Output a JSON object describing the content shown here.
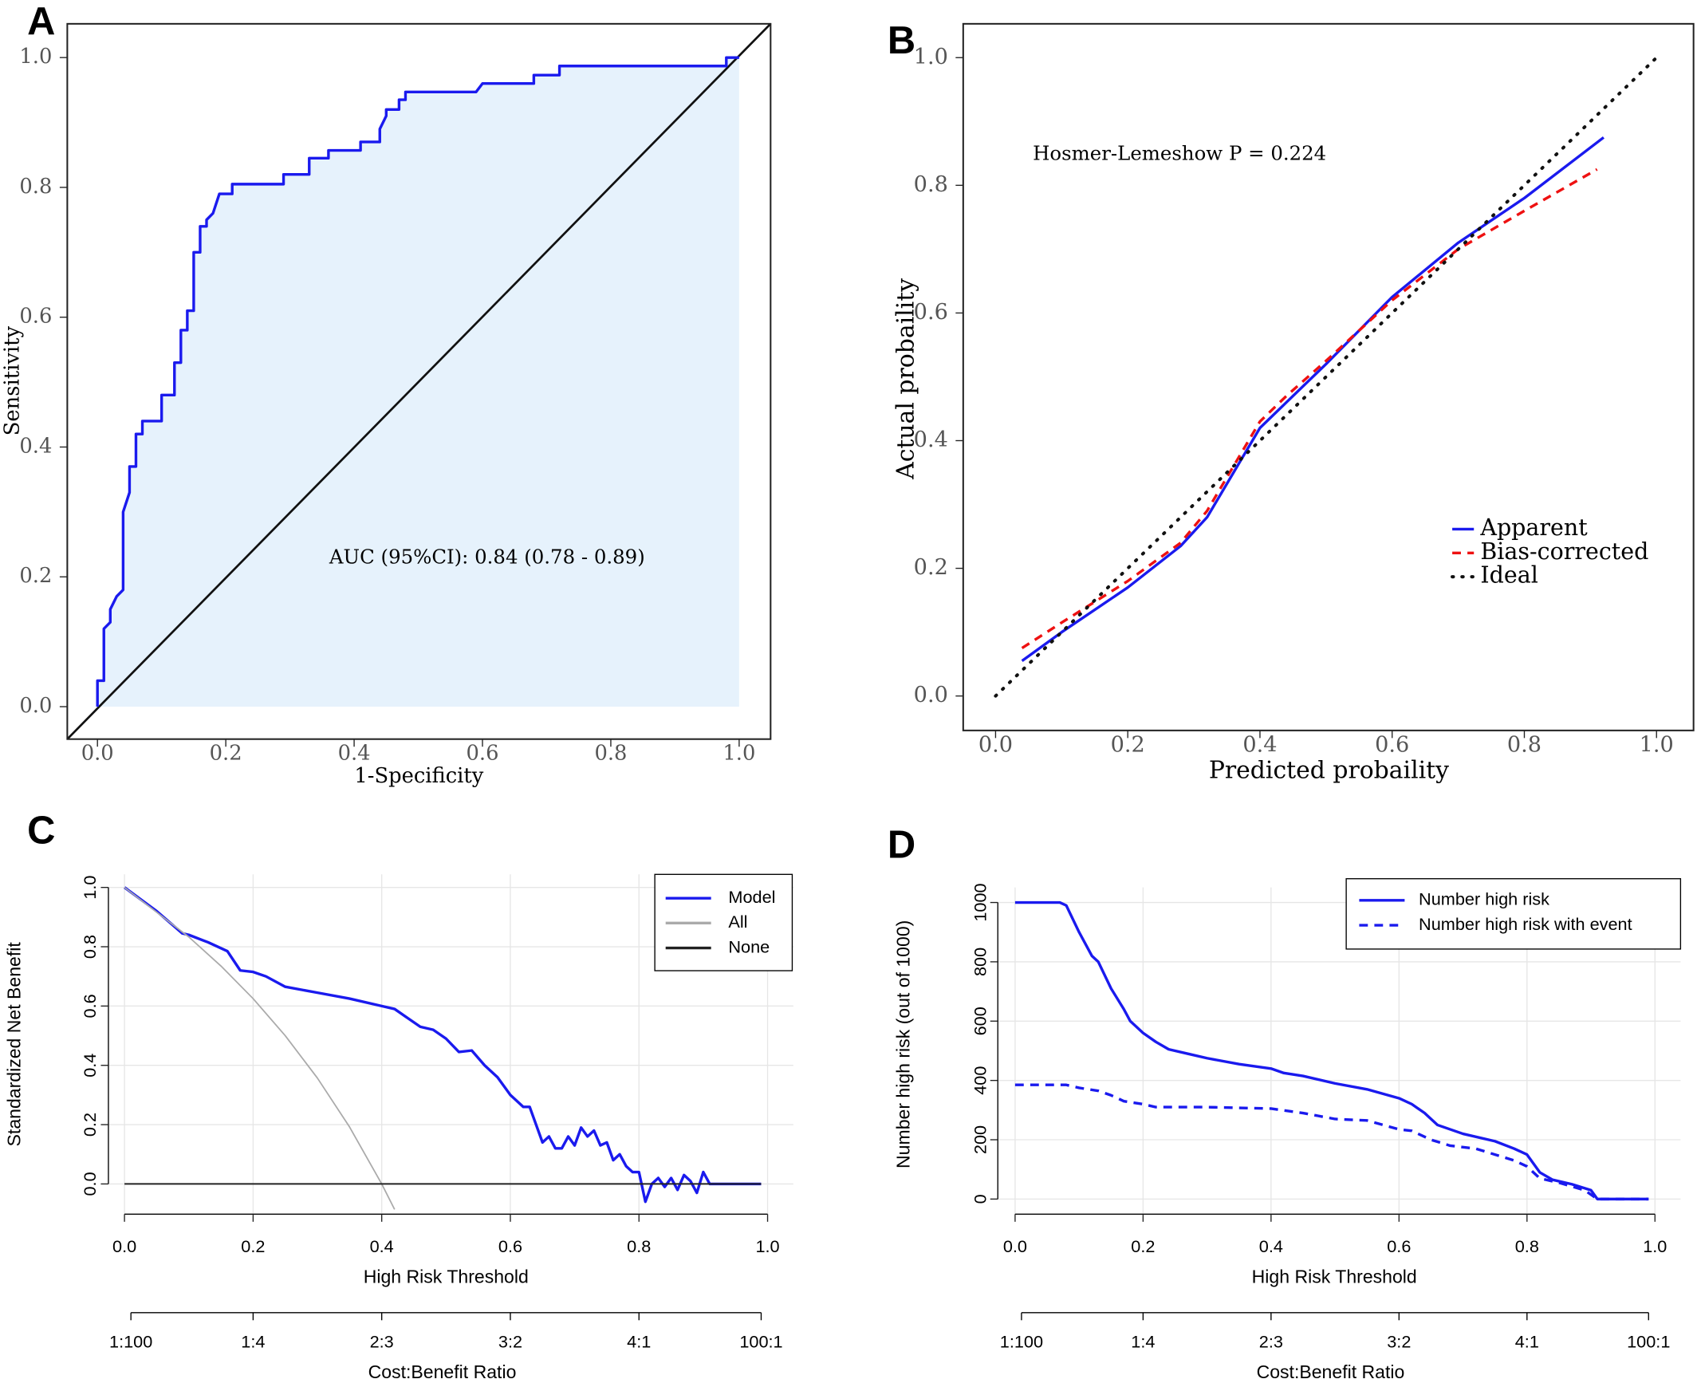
{
  "chart_data": [
    {
      "type": "line",
      "panel": "A",
      "xlabel": "1-Specificity",
      "ylabel": "Sensitivity",
      "annotation": "AUC (95%CI): 0.84 (0.78 - 0.89)",
      "xlim": [
        -0.047,
        1.049
      ],
      "ylim": [
        -0.05,
        1.052
      ],
      "grid": false,
      "xticks": [
        {
          "value": 0,
          "label": "0.0"
        },
        0.2,
        0.4,
        0.6,
        0.8,
        {
          "value": 1,
          "label": "1.0"
        }
      ],
      "yticks": [
        {
          "value": 0,
          "label": "0.0"
        },
        0.2,
        0.4,
        0.6,
        0.8,
        {
          "value": 1,
          "label": "1.0"
        }
      ],
      "series": [
        {
          "color": "#1a1aee",
          "fill": "#e6f2fc",
          "dash": "solid",
          "x": [
            0,
            0,
            0.01,
            0.01,
            0.02,
            0.02,
            0.03,
            0.04,
            0.04,
            0.05,
            0.05,
            0.06,
            0.06,
            0.07,
            0.07,
            0.1,
            0.1,
            0.12,
            0.12,
            0.13,
            0.13,
            0.14,
            0.14,
            0.15,
            0.15,
            0.16,
            0.16,
            0.17,
            0.17,
            0.18,
            0.19,
            0.21,
            0.21,
            0.29,
            0.29,
            0.33,
            0.33,
            0.36,
            0.36,
            0.41,
            0.41,
            0.44,
            0.44,
            0.45,
            0.45,
            0.47,
            0.47,
            0.48,
            0.48,
            0.59,
            0.6,
            0.68,
            0.68,
            0.72,
            0.72,
            0.98,
            0.98,
            1
          ],
          "values": [
            0,
            0.04,
            0.04,
            0.12,
            0.13,
            0.15,
            0.17,
            0.18,
            0.3,
            0.33,
            0.37,
            0.37,
            0.42,
            0.42,
            0.44,
            0.44,
            0.48,
            0.48,
            0.53,
            0.53,
            0.58,
            0.58,
            0.61,
            0.61,
            0.7,
            0.7,
            0.74,
            0.74,
            0.75,
            0.76,
            0.79,
            0.79,
            0.805,
            0.805,
            0.82,
            0.82,
            0.845,
            0.845,
            0.857,
            0.857,
            0.87,
            0.87,
            0.89,
            0.91,
            0.92,
            0.92,
            0.935,
            0.935,
            0.947,
            0.947,
            0.96,
            0.96,
            0.973,
            0.973,
            0.987,
            0.987,
            1,
            1
          ]
        }
      ]
    },
    {
      "type": "line",
      "panel": "B",
      "xlabel": "Predicted probaility",
      "ylabel": "Actual probaility",
      "annotation": "Hosmer-Lemeshow  P  =  0.224",
      "xlim": [
        -0.049,
        1.056
      ],
      "ylim": [
        -0.054,
        1.053
      ],
      "grid": false,
      "legend": "bottom-right",
      "xticks": [
        {
          "value": 0,
          "label": "0.0"
        },
        0.2,
        0.4,
        0.6,
        0.8,
        {
          "value": 1,
          "label": "1.0"
        }
      ],
      "yticks": [
        {
          "value": 0,
          "label": "0.0"
        },
        0.2,
        0.4,
        0.6,
        0.8,
        {
          "value": 1,
          "label": "1.0"
        }
      ],
      "series": [
        {
          "name": "Apparent",
          "color": "#1a1aee",
          "dash": "solid",
          "x": [
            0.04,
            0.1,
            0.2,
            0.28,
            0.32,
            0.36,
            0.4,
            0.44,
            0.5,
            0.6,
            0.7,
            0.8,
            0.92
          ],
          "values": [
            0.055,
            0.1,
            0.17,
            0.235,
            0.28,
            0.35,
            0.42,
            0.46,
            0.52,
            0.625,
            0.71,
            0.78,
            0.875
          ]
        },
        {
          "name": "Bias-corrected",
          "color": "#ee1111",
          "dash": "dashed",
          "x": [
            0.04,
            0.1,
            0.2,
            0.28,
            0.32,
            0.36,
            0.4,
            0.44,
            0.5,
            0.6,
            0.7,
            0.8,
            0.91
          ],
          "values": [
            0.075,
            0.115,
            0.18,
            0.24,
            0.29,
            0.36,
            0.43,
            0.47,
            0.525,
            0.62,
            0.7,
            0.76,
            0.825
          ]
        },
        {
          "name": "Ideal",
          "color": "#111111",
          "dash": "dotted",
          "x": [
            0,
            1
          ],
          "values": [
            0,
            1
          ]
        }
      ]
    },
    {
      "type": "line",
      "panel": "C",
      "xlabel": "High Risk Threshold",
      "ylabel": "Standardized Net Benefit",
      "x2label": "Cost:Benefit Ratio",
      "xlim": [
        -0.025,
        1.04
      ],
      "ylim": [
        -0.102,
        1.044
      ],
      "grid": true,
      "legend": "top-right",
      "xticks": [
        {
          "value": 0,
          "label": "0.0"
        },
        0.2,
        0.4,
        0.6,
        0.8,
        {
          "value": 1,
          "label": "1.0"
        }
      ],
      "yticks": [
        {
          "value": 0,
          "label": "0.0"
        },
        0.2,
        0.4,
        0.6,
        0.8,
        {
          "value": 1,
          "label": "1.0"
        }
      ],
      "x2ticks": [
        {
          "value": 0.01,
          "label": "1:100"
        },
        {
          "value": 0.2,
          "label": "1:4"
        },
        {
          "value": 0.4,
          "label": "2:3"
        },
        {
          "value": 0.6,
          "label": "3:2"
        },
        {
          "value": 0.8,
          "label": "4:1"
        },
        {
          "value": 0.99,
          "label": "100:1"
        }
      ],
      "series": [
        {
          "name": "Model",
          "color": "#1a1aee",
          "dash": "solid",
          "x": [
            0,
            0.05,
            0.09,
            0.1,
            0.13,
            0.16,
            0.18,
            0.2,
            0.22,
            0.25,
            0.3,
            0.35,
            0.4,
            0.42,
            0.44,
            0.46,
            0.48,
            0.5,
            0.52,
            0.54,
            0.56,
            0.58,
            0.6,
            0.62,
            0.63,
            0.64,
            0.65,
            0.66,
            0.67,
            0.68,
            0.69,
            0.7,
            0.71,
            0.72,
            0.73,
            0.74,
            0.75,
            0.76,
            0.77,
            0.78,
            0.79,
            0.8,
            0.81,
            0.82,
            0.83,
            0.84,
            0.85,
            0.86,
            0.87,
            0.88,
            0.89,
            0.9,
            0.91,
            0.99
          ],
          "values": [
            1,
            0.92,
            0.845,
            0.84,
            0.815,
            0.785,
            0.72,
            0.715,
            0.7,
            0.665,
            0.645,
            0.625,
            0.6,
            0.59,
            0.56,
            0.53,
            0.52,
            0.49,
            0.445,
            0.45,
            0.4,
            0.36,
            0.3,
            0.26,
            0.26,
            0.2,
            0.14,
            0.16,
            0.12,
            0.12,
            0.16,
            0.13,
            0.19,
            0.16,
            0.18,
            0.13,
            0.14,
            0.08,
            0.1,
            0.06,
            0.04,
            0.04,
            -0.06,
            0,
            0.02,
            -0.01,
            0.02,
            -0.02,
            0.03,
            0.01,
            -0.03,
            0.04,
            0,
            0
          ]
        },
        {
          "name": "All",
          "color": "#aaaaaa",
          "dash": "solid",
          "x": [
            0,
            0.1,
            0.15,
            0.2,
            0.25,
            0.3,
            0.35,
            0.4,
            0.42
          ],
          "values": [
            1,
            0.833,
            0.735,
            0.625,
            0.5,
            0.357,
            0.192,
            0,
            -0.086
          ]
        },
        {
          "name": "None",
          "color": "#222222",
          "dash": "solid",
          "x": [
            0,
            0.99
          ],
          "values": [
            0,
            0
          ]
        }
      ]
    },
    {
      "type": "line",
      "panel": "D",
      "xlabel": "High Risk Threshold",
      "ylabel": "Number high risk (out of 1000)",
      "x2label": "Cost:Benefit Ratio",
      "xlim": [
        -0.027,
        1.04
      ],
      "ylim": [
        -51,
        1051
      ],
      "grid": true,
      "legend": "top-right",
      "xticks": [
        {
          "value": 0,
          "label": "0.0"
        },
        0.2,
        0.4,
        0.6,
        0.8,
        {
          "value": 1,
          "label": "1.0"
        }
      ],
      "yticks": [
        0,
        200,
        400,
        600,
        800,
        1000
      ],
      "x2ticks": [
        {
          "value": 0.01,
          "label": "1:100"
        },
        {
          "value": 0.2,
          "label": "1:4"
        },
        {
          "value": 0.4,
          "label": "2:3"
        },
        {
          "value": 0.6,
          "label": "3:2"
        },
        {
          "value": 0.8,
          "label": "4:1"
        },
        {
          "value": 0.99,
          "label": "100:1"
        }
      ],
      "series": [
        {
          "name": "Number high risk",
          "color": "#1a1aee",
          "dash": "solid",
          "x": [
            0,
            0.07,
            0.08,
            0.1,
            0.12,
            0.13,
            0.15,
            0.17,
            0.18,
            0.2,
            0.22,
            0.24,
            0.27,
            0.3,
            0.35,
            0.4,
            0.42,
            0.45,
            0.5,
            0.55,
            0.6,
            0.62,
            0.64,
            0.66,
            0.7,
            0.75,
            0.78,
            0.8,
            0.82,
            0.84,
            0.87,
            0.9,
            0.91,
            0.99
          ],
          "values": [
            1000,
            1000,
            990,
            900,
            820,
            800,
            710,
            640,
            600,
            560,
            530,
            505,
            490,
            475,
            455,
            440,
            425,
            415,
            390,
            370,
            340,
            320,
            290,
            250,
            220,
            195,
            170,
            150,
            90,
            65,
            50,
            30,
            0,
            0
          ]
        },
        {
          "name": "Number high risk with event",
          "color": "#1a1aee",
          "dash": "dashed",
          "x": [
            0,
            0.08,
            0.1,
            0.13,
            0.15,
            0.17,
            0.2,
            0.22,
            0.3,
            0.4,
            0.45,
            0.5,
            0.55,
            0.6,
            0.62,
            0.65,
            0.68,
            0.72,
            0.75,
            0.78,
            0.8,
            0.82,
            0.85,
            0.89,
            0.91,
            0.99
          ],
          "values": [
            385,
            385,
            375,
            365,
            350,
            330,
            320,
            310,
            310,
            305,
            290,
            270,
            265,
            235,
            230,
            200,
            180,
            170,
            150,
            130,
            110,
            70,
            55,
            30,
            0,
            0
          ]
        }
      ]
    }
  ]
}
